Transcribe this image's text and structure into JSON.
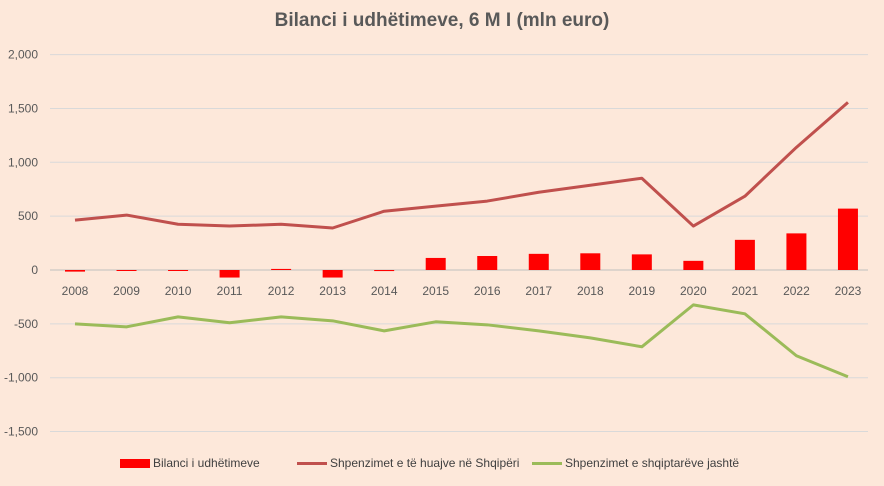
{
  "chart_data": {
    "type": "bar+line",
    "title": "Bilanci i udhëtimeve, 6 M I (mln euro)",
    "categories": [
      "2008",
      "2009",
      "2010",
      "2011",
      "2012",
      "2013",
      "2014",
      "2015",
      "2016",
      "2017",
      "2018",
      "2019",
      "2020",
      "2021",
      "2022",
      "2023"
    ],
    "ylim": [
      -1500,
      2000
    ],
    "yticks": [
      -1500,
      -1000,
      -500,
      0,
      500,
      1000,
      1500,
      2000
    ],
    "ytick_labels": [
      "-1,500",
      "-1,000",
      "-500",
      "0",
      "500",
      "1,000",
      "1,500",
      "2,000"
    ],
    "grid": true,
    "legend_position": "bottom",
    "series": [
      {
        "name": "Bilanci i udhëtimeve",
        "type": "bar",
        "color": "#ff0000",
        "values": [
          -15,
          -5,
          -5,
          -70,
          10,
          -70,
          -10,
          112,
          130,
          150,
          155,
          145,
          85,
          280,
          340,
          570
        ]
      },
      {
        "name": "Shpenzimet e të huajve në Shqipëri",
        "type": "line",
        "color": "#c0504d",
        "values": [
          463,
          510,
          425,
          408,
          425,
          390,
          546,
          593,
          640,
          722,
          787,
          852,
          408,
          685,
          1139,
          1556
        ]
      },
      {
        "name": "Shpenzimet e shqiptarëve jashtë",
        "type": "line",
        "color": "#9bbb59",
        "values": [
          -500,
          -528,
          -435,
          -490,
          -435,
          -472,
          -565,
          -481,
          -509,
          -565,
          -630,
          -713,
          -324,
          -407,
          -796,
          -991
        ]
      }
    ]
  }
}
